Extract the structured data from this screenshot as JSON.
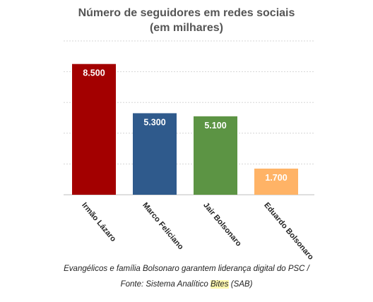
{
  "chart_data": {
    "type": "bar",
    "title": "Número de seguidores em redes sociais",
    "subtitle": "(em milhares)",
    "categories": [
      "Irmão Lázaro",
      "Marco Feliciano",
      "Jair Bolsonaro",
      "Eduardo Bolsonaro"
    ],
    "values": [
      8500,
      5300,
      5100,
      1700
    ],
    "value_labels": [
      "8.500",
      "5.300",
      "5.100",
      "1.700"
    ],
    "colors": [
      "#a30000",
      "#2f5a8c",
      "#5c9444",
      "#ffb366"
    ],
    "ylim": [
      0,
      10000
    ],
    "grid": true
  },
  "caption": {
    "line1": "Evangélicos e família Bolsonaro garantem liderança digital do PSC /",
    "line2_prefix": "Fonte: Sistema Analítico ",
    "line2_highlight": "Bites",
    "line2_suffix": " (SAB)"
  }
}
